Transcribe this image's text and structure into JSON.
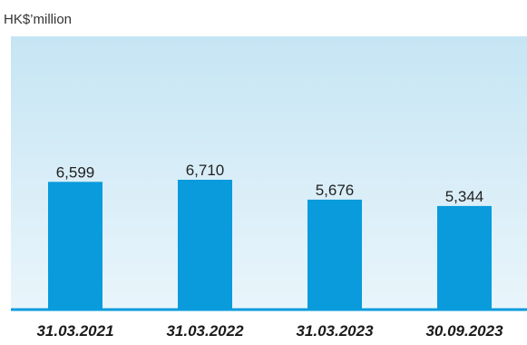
{
  "chart_data": {
    "type": "bar",
    "unit_label": "HK$’million",
    "categories": [
      "31.03.2021",
      "31.03.2022",
      "31.03.2023",
      "30.09.2023"
    ],
    "values": [
      6599,
      6710,
      5676,
      5344
    ],
    "value_labels": [
      "6,599",
      "6,710",
      "5,676",
      "5,344"
    ],
    "ylim": [
      0,
      14000
    ],
    "grid": false,
    "legend": "none",
    "colors": {
      "bar": "#0a9bdc",
      "background_top": "#c6e5f4",
      "background_bottom": "#e9f5fb",
      "baseline": "#0a9bdc"
    }
  }
}
